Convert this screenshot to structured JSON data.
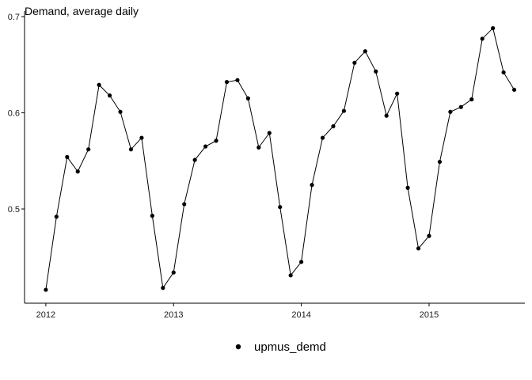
{
  "chart_data": {
    "type": "line",
    "title": "Demand, average daily",
    "xlabel": "",
    "ylabel": "",
    "x": [
      "2012-01",
      "2012-02",
      "2012-03",
      "2012-04",
      "2012-05",
      "2012-06",
      "2012-07",
      "2012-08",
      "2012-09",
      "2012-10",
      "2012-11",
      "2012-12",
      "2013-01",
      "2013-02",
      "2013-03",
      "2013-04",
      "2013-05",
      "2013-06",
      "2013-07",
      "2013-08",
      "2013-09",
      "2013-10",
      "2013-11",
      "2013-12",
      "2014-01",
      "2014-02",
      "2014-03",
      "2014-04",
      "2014-05",
      "2014-06",
      "2014-07",
      "2014-08",
      "2014-09",
      "2014-10",
      "2014-11",
      "2014-12",
      "2015-01",
      "2015-02",
      "2015-03",
      "2015-04",
      "2015-05",
      "2015-06",
      "2015-07",
      "2015-08",
      "2015-09"
    ],
    "series": [
      {
        "name": "upmus_demd",
        "values": [
          0.416,
          0.492,
          0.554,
          0.539,
          0.562,
          0.629,
          0.618,
          0.601,
          0.562,
          0.574,
          0.493,
          0.418,
          0.434,
          0.505,
          0.551,
          0.565,
          0.571,
          0.632,
          0.634,
          0.615,
          0.564,
          0.579,
          0.502,
          0.431,
          0.445,
          0.525,
          0.574,
          0.586,
          0.602,
          0.652,
          0.664,
          0.643,
          0.597,
          0.62,
          0.522,
          0.459,
          0.472,
          0.549,
          0.601,
          0.606,
          0.614,
          0.677,
          0.688,
          0.642,
          0.624
        ]
      }
    ],
    "xticks": [
      "2012",
      "2013",
      "2014",
      "2015"
    ],
    "yticks": [
      "0.5",
      "0.6",
      "0.7"
    ],
    "xlim": [
      "2011-11",
      "2015-10"
    ],
    "ylim": [
      0.4,
      0.7
    ],
    "grid": false,
    "legend": "bottom",
    "colors": {
      "line": "#000000",
      "point": "#000000"
    }
  }
}
